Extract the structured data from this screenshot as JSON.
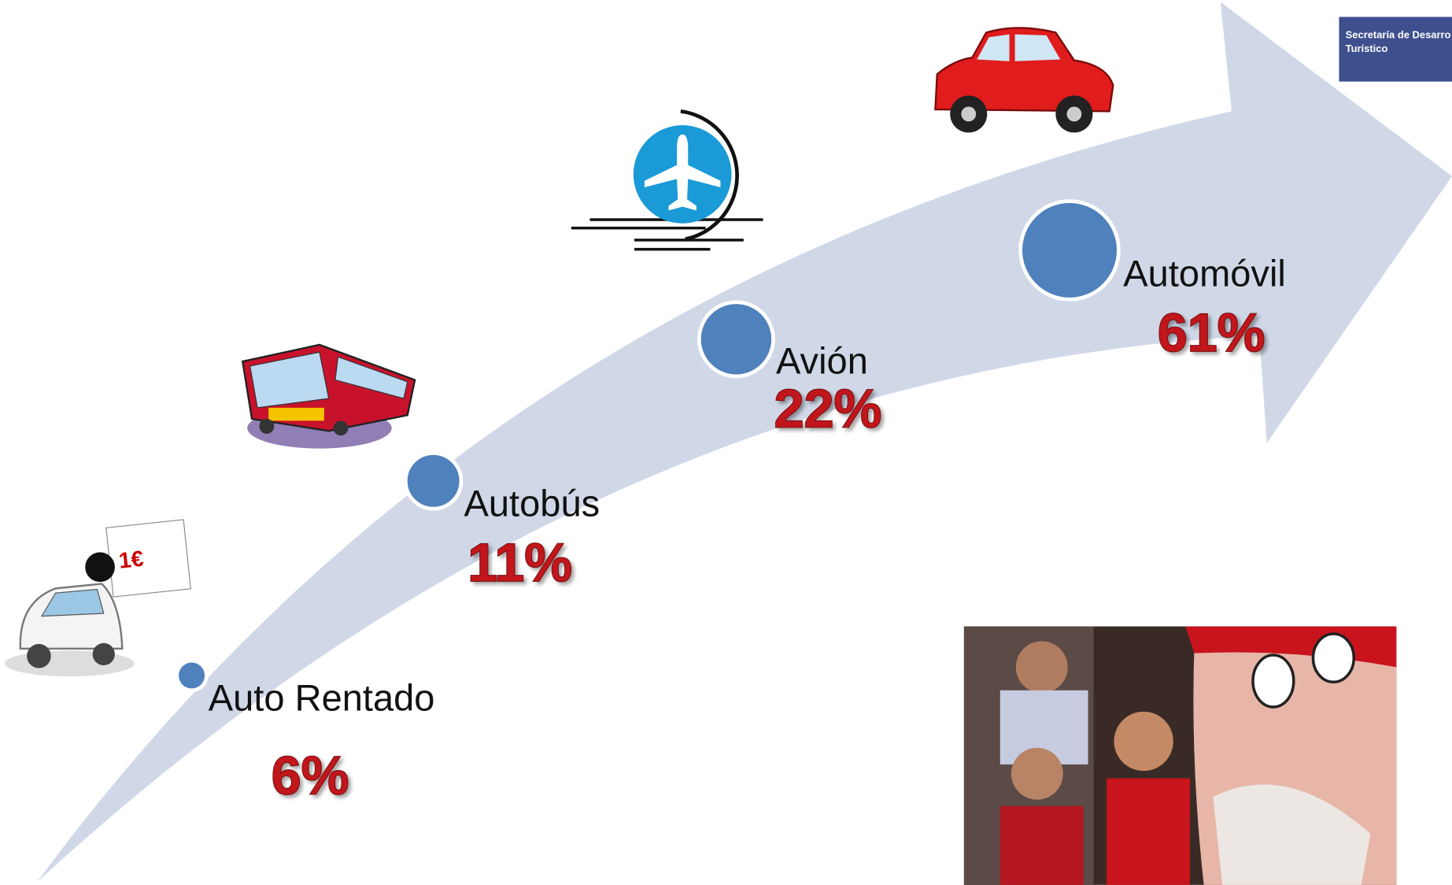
{
  "header": {
    "logo_line1": "Secretaría de Desarro",
    "logo_line2": "Turístico"
  },
  "items": [
    {
      "label": "Auto Rentado",
      "percent": "6%"
    },
    {
      "label": "Autobús",
      "percent": "11%"
    },
    {
      "label": "Avión",
      "percent": "22%"
    },
    {
      "label": "Automóvil",
      "percent": "61%"
    }
  ]
}
